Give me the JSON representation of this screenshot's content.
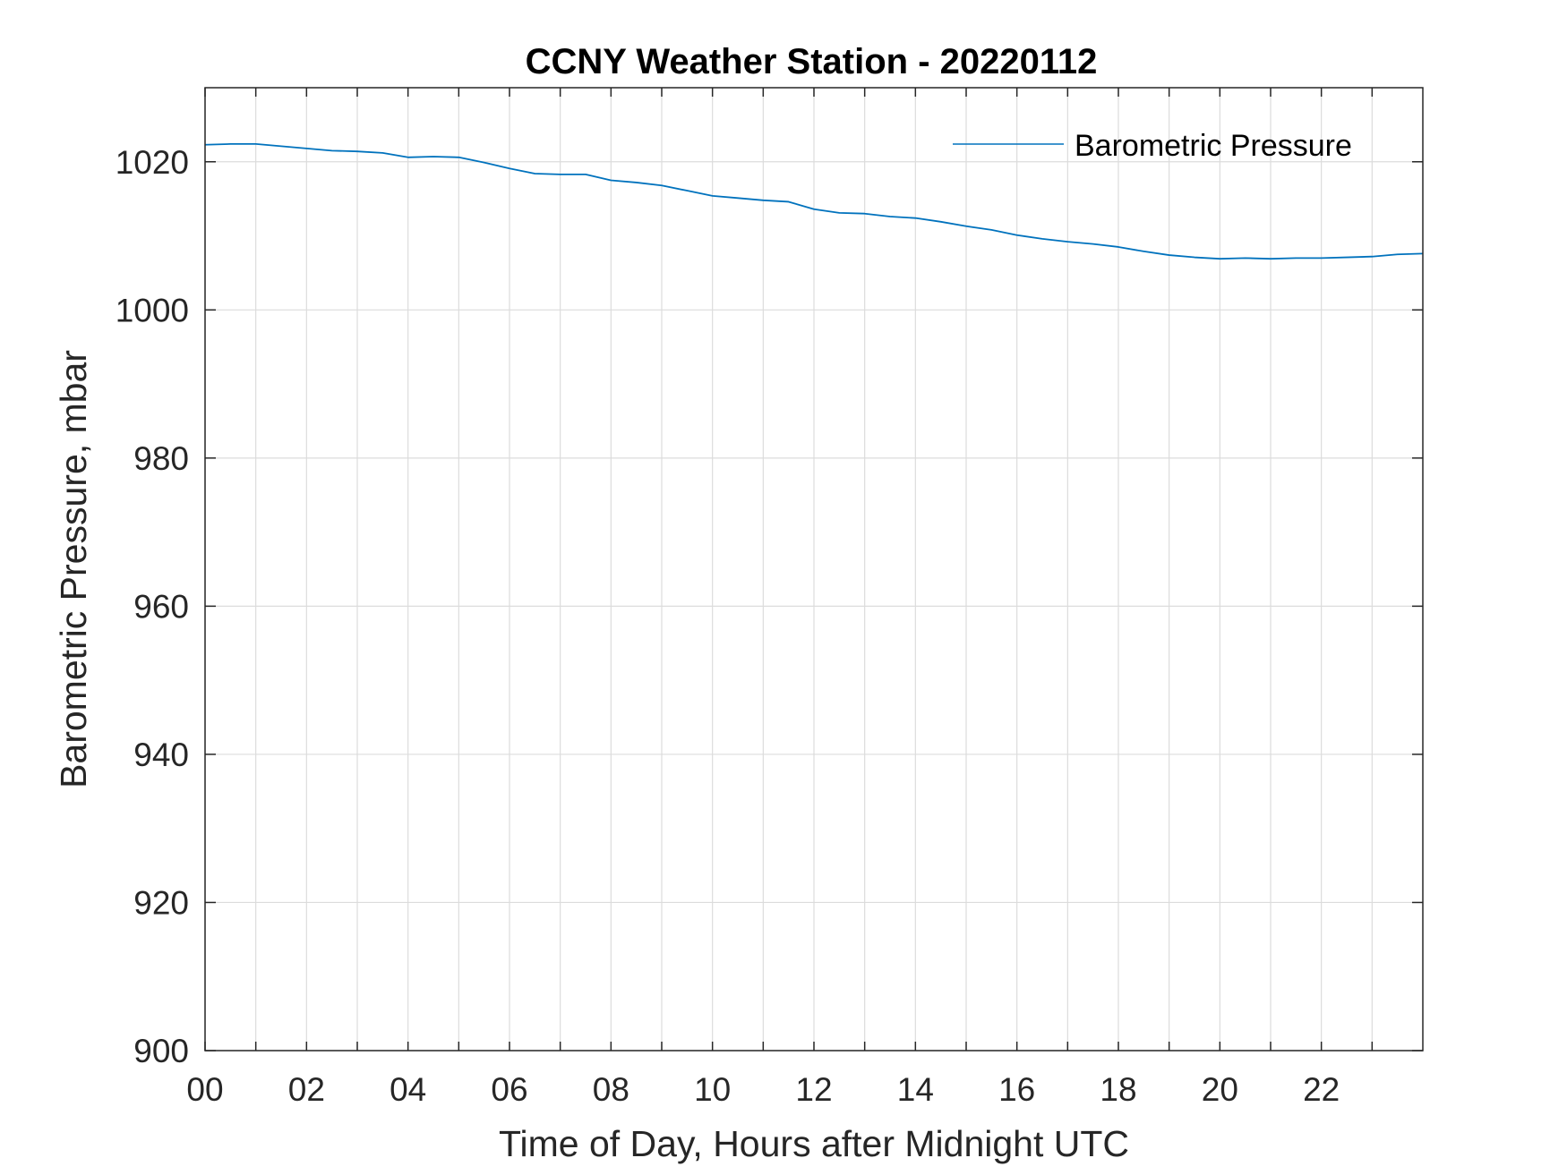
{
  "chart_data": {
    "type": "line",
    "title": "CCNY Weather Station - 20220112",
    "xlabel": "Time of Day, Hours after Midnight UTC",
    "ylabel": "Barometric Pressure, mbar",
    "xlim": [
      0,
      24
    ],
    "ylim": [
      900,
      1030
    ],
    "x_ticks": [
      0,
      2,
      4,
      6,
      8,
      10,
      12,
      14,
      16,
      18,
      20,
      22
    ],
    "x_tick_labels": [
      "00",
      "02",
      "04",
      "06",
      "08",
      "10",
      "12",
      "14",
      "16",
      "18",
      "20",
      "22"
    ],
    "x_minor_grid": [
      1,
      3,
      5,
      7,
      9,
      11,
      13,
      15,
      17,
      19,
      21,
      23
    ],
    "y_ticks": [
      900,
      920,
      940,
      960,
      980,
      1000,
      1020
    ],
    "y_tick_labels": [
      "900",
      "920",
      "940",
      "960",
      "980",
      "1000",
      "1020"
    ],
    "grid": true,
    "legend_position": "top-right",
    "series": [
      {
        "name": "Barometric Pressure",
        "color": "#0072BD",
        "x": [
          0,
          0.5,
          1,
          1.5,
          2,
          2.5,
          3,
          3.5,
          4,
          4.5,
          5,
          5.5,
          6,
          6.5,
          7,
          7.5,
          8,
          8.5,
          9,
          9.5,
          10,
          10.5,
          11,
          11.5,
          12,
          12.5,
          13,
          13.5,
          14,
          14.5,
          15,
          15.5,
          16,
          16.5,
          17,
          17.5,
          18,
          18.5,
          19,
          19.5,
          20,
          20.5,
          21,
          21.5,
          22,
          22.5,
          23,
          23.5,
          24
        ],
        "values": [
          1022.3,
          1022.4,
          1022.4,
          1022.1,
          1021.8,
          1021.5,
          1021.4,
          1021.2,
          1020.6,
          1020.7,
          1020.6,
          1019.9,
          1019.1,
          1018.4,
          1018.3,
          1018.3,
          1017.5,
          1017.2,
          1016.8,
          1016.1,
          1015.4,
          1015.1,
          1014.8,
          1014.6,
          1013.6,
          1013.1,
          1013.0,
          1012.6,
          1012.4,
          1011.9,
          1011.3,
          1010.8,
          1010.1,
          1009.6,
          1009.2,
          1008.9,
          1008.5,
          1007.9,
          1007.4,
          1007.1,
          1006.9,
          1007.0,
          1006.9,
          1007.0,
          1007.0,
          1007.1,
          1007.2,
          1007.5,
          1007.6
        ]
      }
    ]
  }
}
